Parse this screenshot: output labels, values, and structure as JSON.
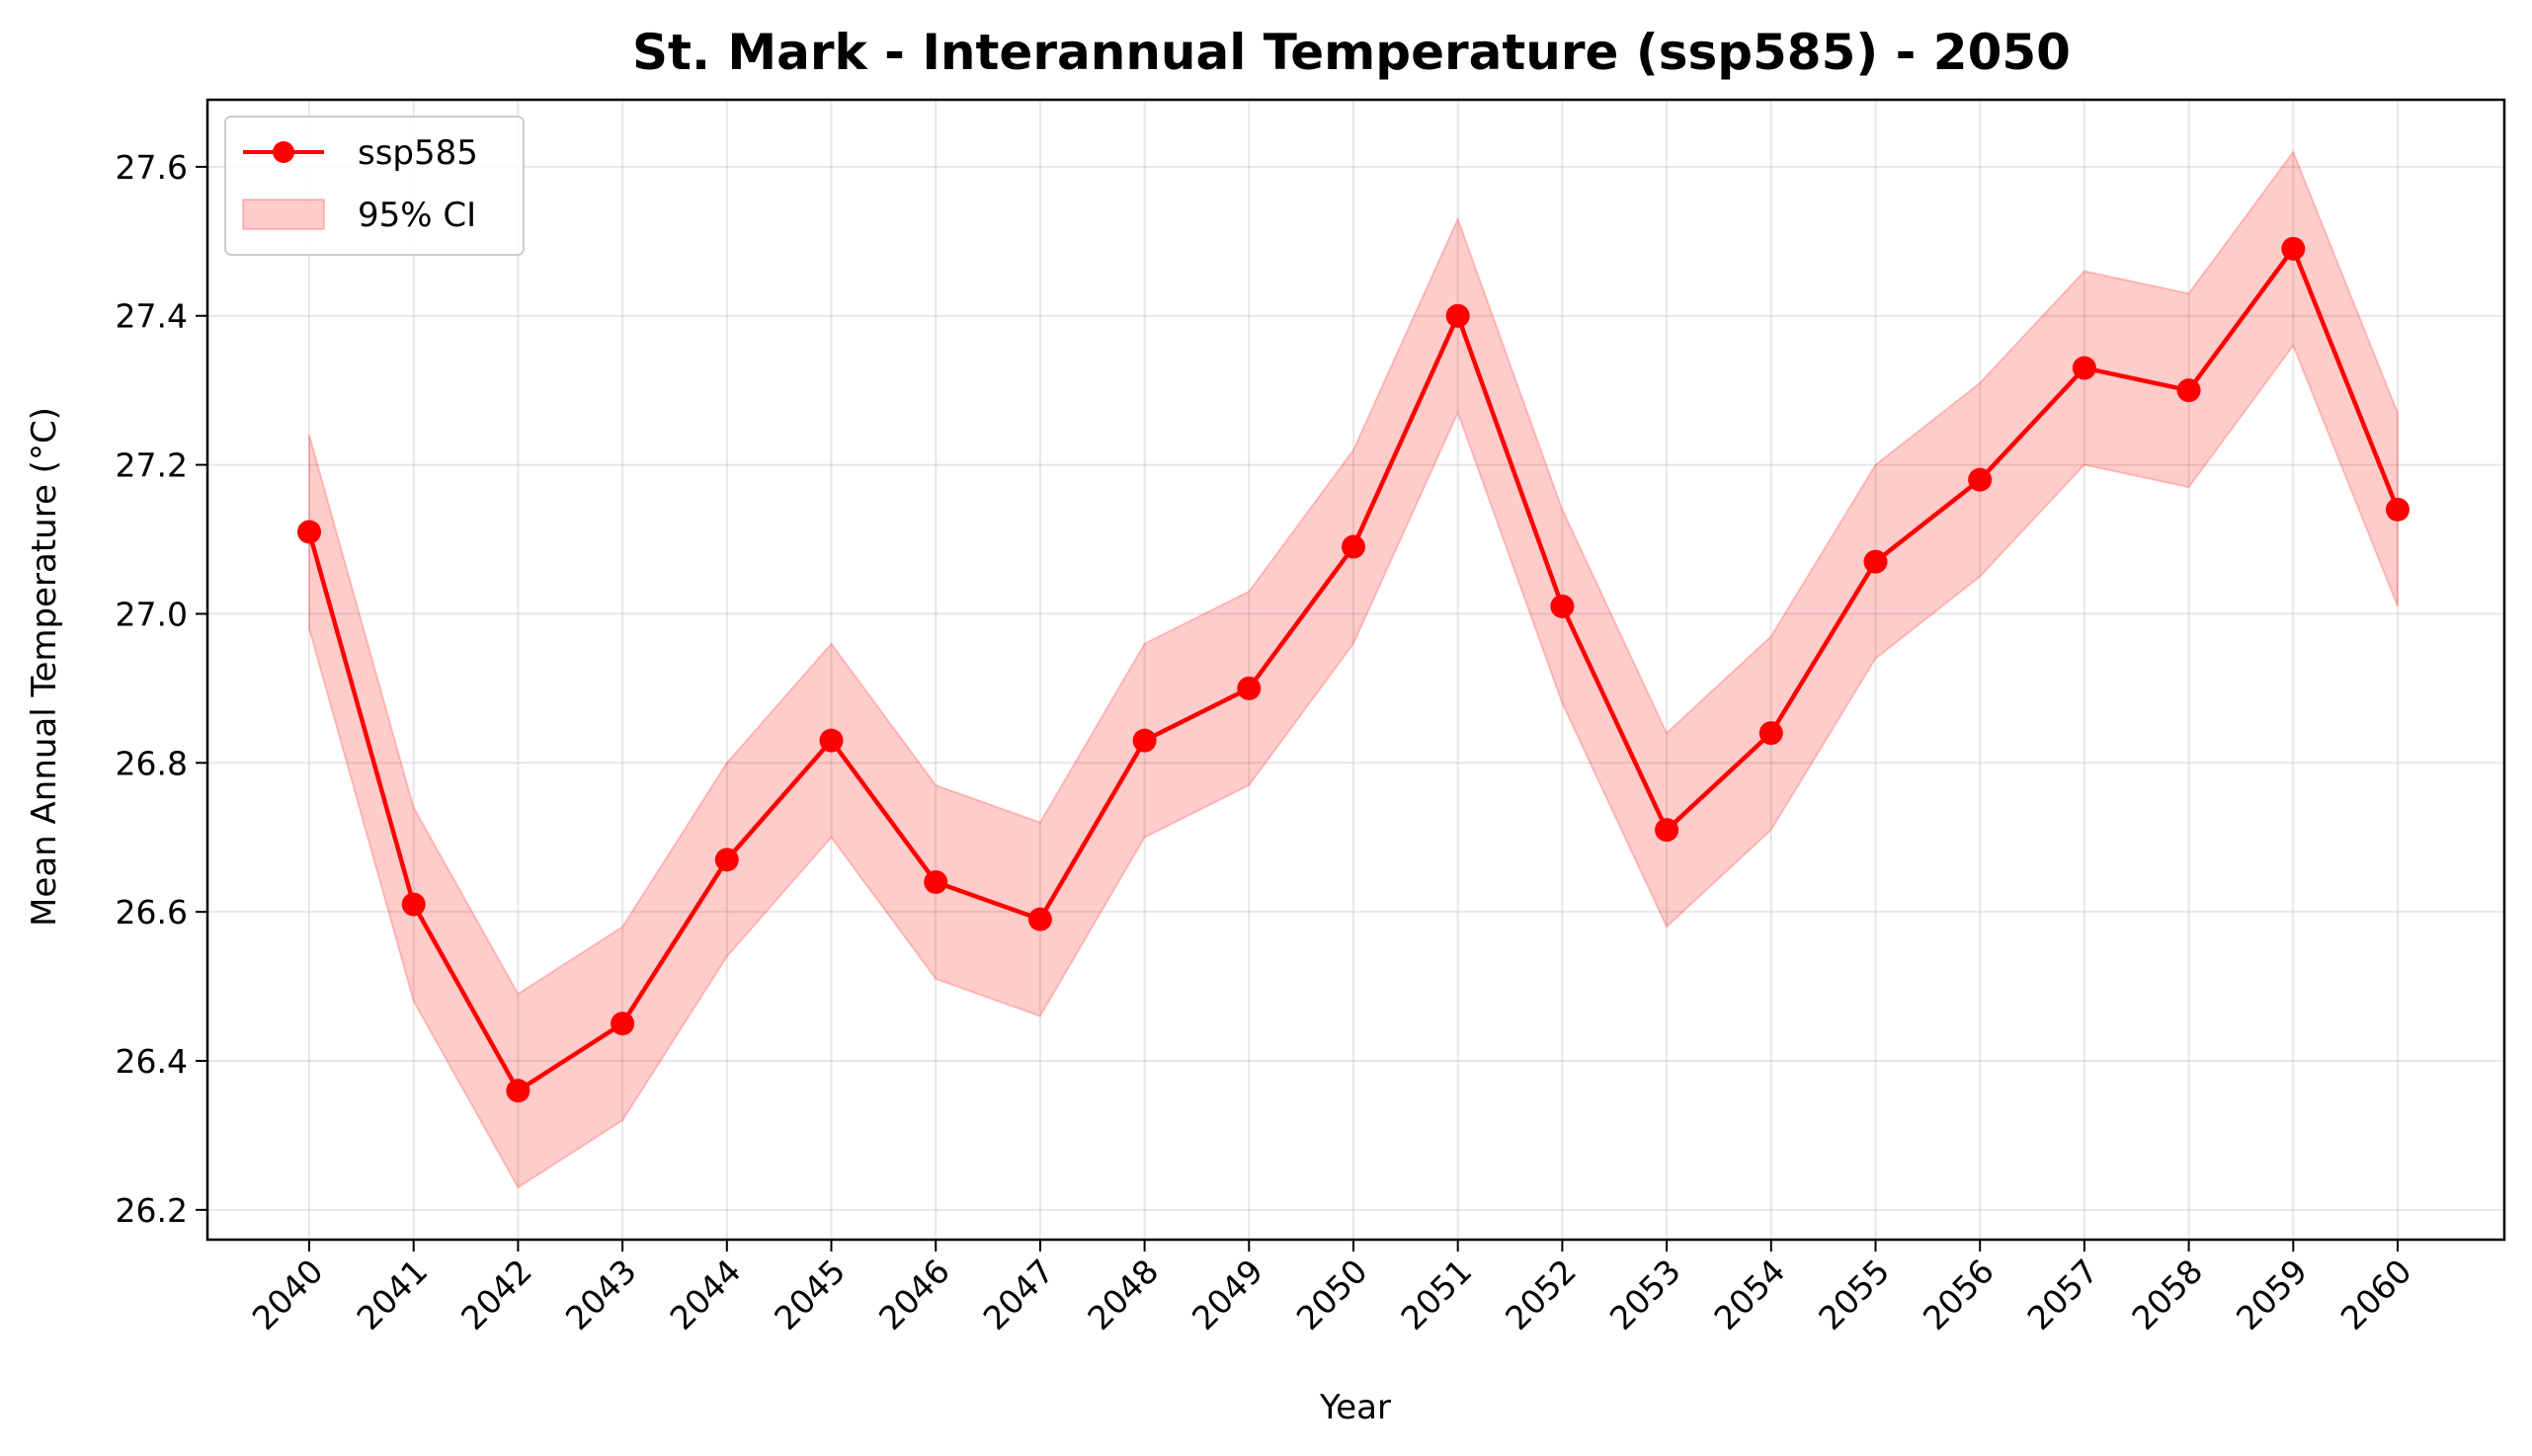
{
  "chart_data": {
    "type": "line",
    "title": "St. Mark - Interannual Temperature (ssp585) - 2050",
    "xlabel": "Year",
    "ylabel": "Mean Annual Temperature (°C)",
    "x": [
      "2040",
      "2041",
      "2042",
      "2043",
      "2044",
      "2045",
      "2046",
      "2047",
      "2048",
      "2049",
      "2050",
      "2051",
      "2052",
      "2053",
      "2054",
      "2055",
      "2056",
      "2057",
      "2058",
      "2059",
      "2060"
    ],
    "ylim": [
      26.16,
      27.69
    ],
    "yticks": [
      26.2,
      26.4,
      26.6,
      26.8,
      27.0,
      27.2,
      27.4,
      27.6
    ],
    "ytick_labels": [
      "26.2",
      "26.4",
      "26.6",
      "26.8",
      "27.0",
      "27.2",
      "27.4",
      "27.6"
    ],
    "grid": true,
    "legend_position": "top-left",
    "series": [
      {
        "name": "ssp585",
        "color": "#ff0000",
        "values": [
          27.11,
          26.61,
          26.36,
          26.45,
          26.67,
          26.83,
          26.64,
          26.59,
          26.83,
          26.9,
          27.09,
          27.4,
          27.01,
          26.71,
          26.84,
          27.07,
          27.18,
          27.33,
          27.3,
          27.49,
          27.14
        ]
      }
    ],
    "ci": {
      "name": "95% CI",
      "color": "#ff0000",
      "lower": [
        26.98,
        26.48,
        26.23,
        26.32,
        26.54,
        26.7,
        26.51,
        26.46,
        26.7,
        26.77,
        26.96,
        27.27,
        26.88,
        26.58,
        26.71,
        26.94,
        27.05,
        27.2,
        27.17,
        27.36,
        27.01
      ],
      "upper": [
        27.24,
        26.74,
        26.49,
        26.58,
        26.8,
        26.96,
        26.77,
        26.72,
        26.96,
        27.03,
        27.22,
        27.53,
        27.14,
        26.84,
        26.97,
        27.2,
        27.31,
        27.46,
        27.43,
        27.62,
        27.27
      ]
    }
  }
}
